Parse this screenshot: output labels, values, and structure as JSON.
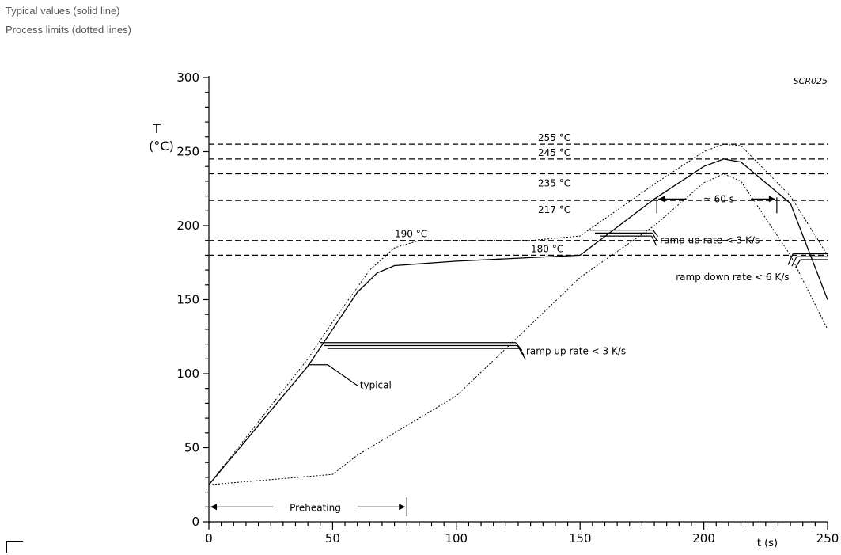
{
  "captions": {
    "typical": "Typical values (solid line)",
    "limits": "Process limits (dotted lines)"
  },
  "chart_data": {
    "type": "line",
    "code": "SCR025",
    "ylabel_line1": "T",
    "ylabel_line2": "(°C)",
    "xlabel": "t (s)",
    "xlim": [
      0,
      250
    ],
    "ylim": [
      0,
      300
    ],
    "x_ticks": [
      0,
      50,
      100,
      150,
      200,
      250
    ],
    "y_ticks": [
      0,
      50,
      100,
      150,
      200,
      250,
      300
    ],
    "series": [
      {
        "style": "solid",
        "points": [
          [
            0,
            25
          ],
          [
            40,
            105
          ],
          [
            48,
            125
          ],
          [
            60,
            155
          ],
          [
            68,
            168
          ],
          [
            75,
            173
          ],
          [
            100,
            176
          ],
          [
            150,
            180
          ],
          [
            180,
            218
          ],
          [
            200,
            240
          ],
          [
            208,
            245
          ],
          [
            215,
            243
          ],
          [
            235,
            215
          ],
          [
            250,
            150
          ]
        ]
      },
      {
        "style": "dotted-upper",
        "points": [
          [
            0,
            25
          ],
          [
            40,
            110
          ],
          [
            50,
            135
          ],
          [
            65,
            170
          ],
          [
            75,
            185
          ],
          [
            85,
            190
          ],
          [
            130,
            190
          ],
          [
            150,
            193
          ],
          [
            180,
            228
          ],
          [
            200,
            250
          ],
          [
            208,
            255
          ],
          [
            215,
            254
          ],
          [
            235,
            220
          ],
          [
            250,
            180
          ]
        ]
      },
      {
        "style": "dotted-lower",
        "points": [
          [
            0,
            25
          ],
          [
            50,
            32
          ],
          [
            60,
            45
          ],
          [
            100,
            85
          ],
          [
            150,
            165
          ],
          [
            180,
            200
          ],
          [
            200,
            229
          ],
          [
            208,
            235
          ],
          [
            215,
            230
          ],
          [
            235,
            180
          ],
          [
            250,
            130
          ]
        ]
      }
    ],
    "reference_lines": [
      {
        "y": 255,
        "label": "255 °C"
      },
      {
        "y": 245,
        "label": "245 °C"
      },
      {
        "y": 235,
        "label": "235 °C"
      },
      {
        "y": 217,
        "label": "217 °C"
      },
      {
        "y": 190,
        "label": "190 °C"
      },
      {
        "y": 180,
        "label": "180 °C"
      }
    ],
    "annotations": {
      "typical": "typical",
      "ramp_up_1": "ramp up rate < 3 K/s",
      "ramp_up_2": "ramp up rate < 3 K/s",
      "ramp_down": "ramp down rate < 6 K/s",
      "duration": "≈ 60 s",
      "preheating": "Preheating"
    }
  }
}
